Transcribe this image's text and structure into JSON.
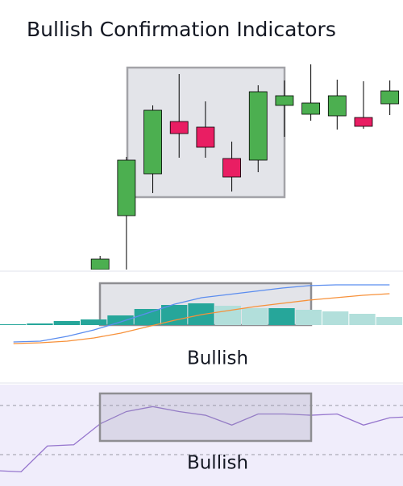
{
  "chart_data": [
    {
      "type": "candlestick",
      "title": "Bullish Confirmation Indicators",
      "x": [
        4,
        5,
        6,
        7,
        8,
        9,
        10,
        11,
        12,
        13,
        14,
        15
      ],
      "open": [
        5,
        72,
        124,
        189,
        182,
        143,
        141,
        209,
        198,
        196,
        194,
        211
      ],
      "high": [
        22,
        145,
        209,
        248,
        214,
        164,
        234,
        240,
        260,
        241,
        239,
        240
      ],
      "low": [
        0,
        5,
        100,
        144,
        144,
        102,
        126,
        170,
        190,
        179,
        180,
        197
      ],
      "close": [
        18,
        141,
        203,
        174,
        157,
        120,
        226,
        221,
        212,
        221,
        183,
        227
      ],
      "up_color": "#4caf50",
      "down_color": "#e91e63",
      "xlim": [
        0.2,
        15.5
      ],
      "ylim": [
        0,
        280
      ]
    },
    {
      "type": "macd",
      "annotation": "Bullish",
      "categories": [
        null,
        null,
        null,
        null,
        null,
        null,
        null,
        null,
        null,
        null,
        null,
        null,
        null,
        null,
        null
      ],
      "histogram": {
        "values": [
          1,
          2,
          5,
          7,
          12,
          20,
          25,
          27,
          24,
          21,
          21,
          19,
          17,
          14,
          10
        ],
        "colors": [
          "#26a69a",
          "#26a69a",
          "#26a69a",
          "#26a69a",
          "#26a69a",
          "#26a69a",
          "#26a69a",
          "#26a69a",
          "#b2dfdb",
          "#b2dfdb",
          "#26a69a",
          "#b2dfdb",
          "#b2dfdb",
          "#b2dfdb",
          "#b2dfdb"
        ]
      },
      "series": [
        {
          "color": "#5b8def",
          "values": [
            -21,
            -20,
            -14,
            -6,
            4,
            15,
            26,
            34,
            38,
            42,
            46,
            49,
            50,
            50,
            50
          ]
        },
        {
          "color": "#f7913a",
          "values": [
            -23,
            -22,
            -20,
            -16,
            -10,
            -2,
            6,
            13,
            18,
            23,
            27,
            31,
            34,
            37,
            39
          ]
        }
      ],
      "ylim": [
        -71,
        66
      ]
    },
    {
      "type": "line",
      "annotation": "Bullish",
      "x": [
        0,
        1,
        2,
        3,
        4,
        5,
        6,
        7,
        8,
        9,
        10,
        11,
        12,
        13,
        14,
        15,
        16
      ],
      "values": [
        17,
        16,
        37,
        38,
        55,
        65,
        69,
        65,
        62,
        54,
        63,
        63,
        62,
        63,
        54,
        60,
        61
      ],
      "color": "#9575cd",
      "levels": [
        70,
        30
      ],
      "xlim": [
        0.2,
        15.5
      ],
      "ylim": [
        -6,
        81
      ]
    }
  ]
}
